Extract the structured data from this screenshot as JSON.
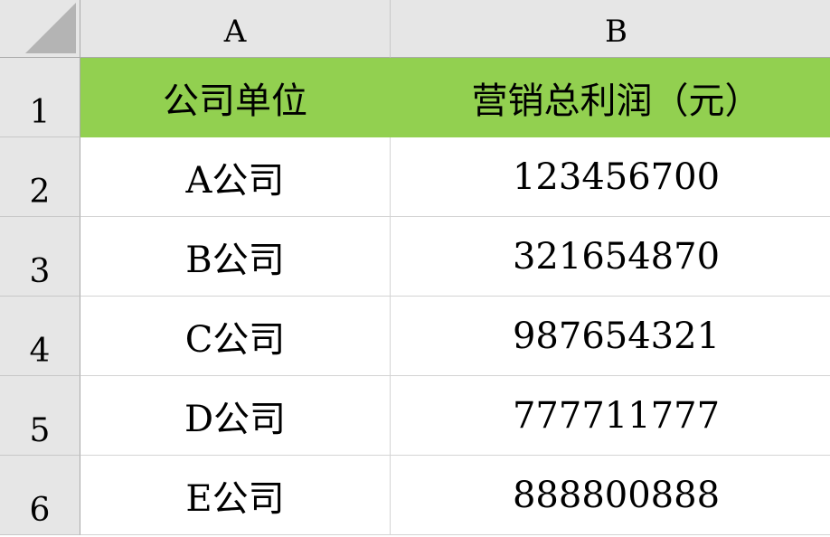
{
  "columns": [
    "A",
    "B"
  ],
  "row_numbers": [
    "1",
    "2",
    "3",
    "4",
    "5",
    "6"
  ],
  "header_fill": "#92d050",
  "rows": [
    [
      "公司单位",
      "营销总利润（元）"
    ],
    [
      "A公司",
      "123456700"
    ],
    [
      "B公司",
      "321654870"
    ],
    [
      "C公司",
      "987654321"
    ],
    [
      "D公司",
      "777711777"
    ],
    [
      "E公司",
      "888800888"
    ]
  ]
}
